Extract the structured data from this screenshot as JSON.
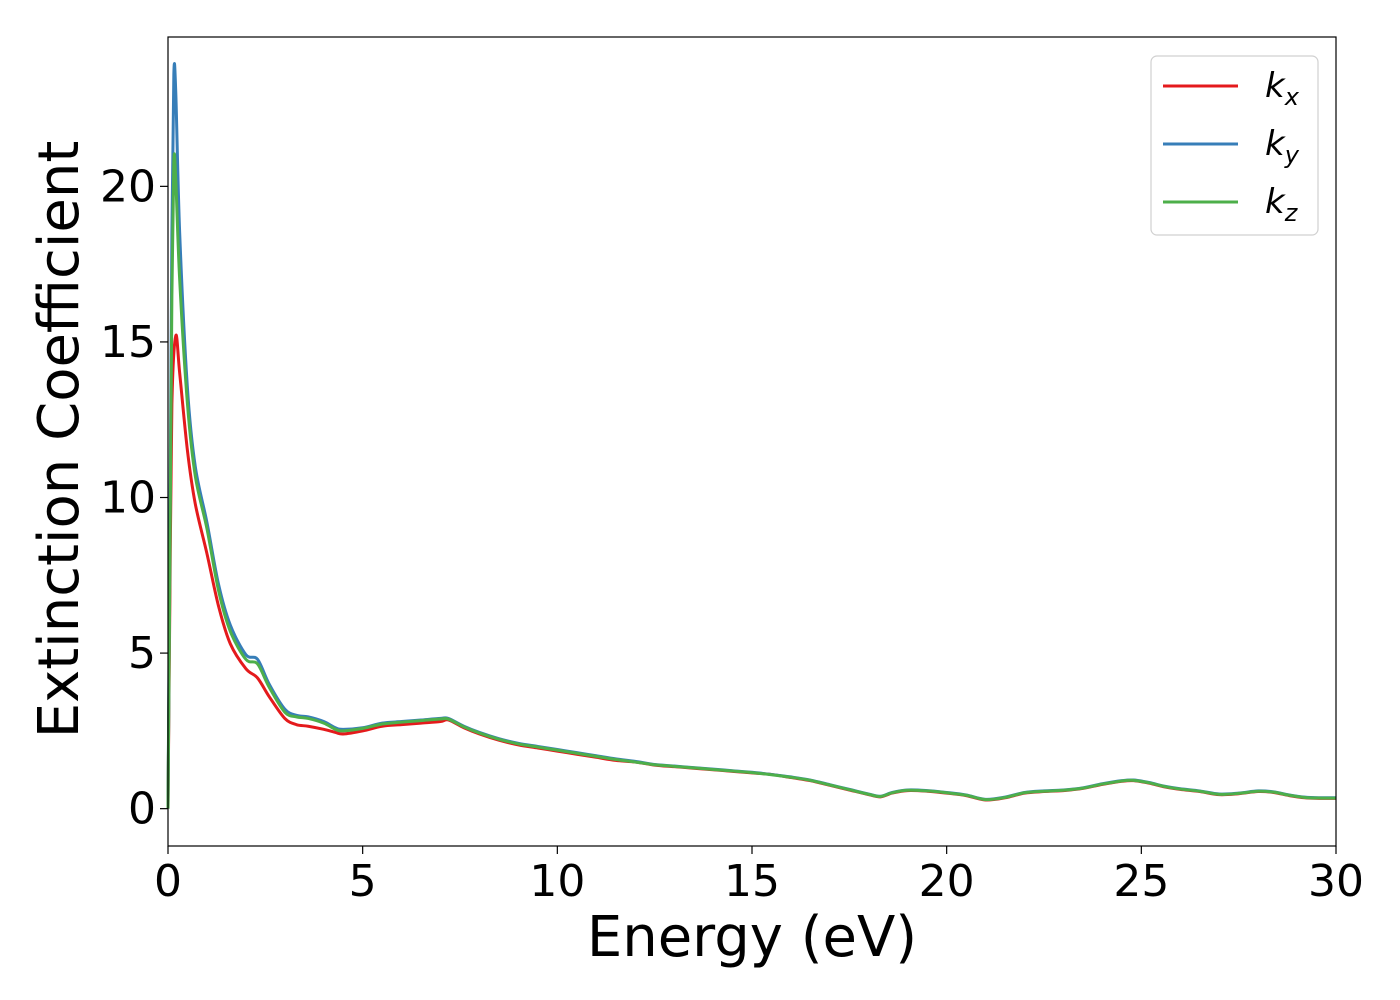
{
  "chart_data": {
    "type": "line",
    "xlabel": "Energy (eV)",
    "ylabel": "Extinction Coefficient",
    "xlim": [
      0,
      30
    ],
    "ylim": [
      -1.2,
      24.8
    ],
    "xticks": [
      0,
      5,
      10,
      15,
      20,
      25,
      30
    ],
    "yticks": [
      0,
      5,
      10,
      15,
      20
    ],
    "grid": false,
    "legend_position": "top-right",
    "series": [
      {
        "name": "kx",
        "label_base": "k",
        "label_sub": "x",
        "color": "#e41a1c",
        "x": [
          0,
          0.05,
          0.1,
          0.2,
          0.3,
          0.5,
          0.7,
          1.0,
          1.3,
          1.6,
          2.0,
          2.3,
          2.6,
          3.0,
          3.3,
          3.6,
          4.0,
          4.3,
          4.5,
          5.0,
          5.5,
          6.0,
          6.5,
          7.0,
          7.2,
          7.6,
          8.0,
          8.5,
          9.0,
          9.5,
          10.0,
          10.5,
          11.0,
          11.5,
          12.0,
          12.5,
          13.0,
          13.5,
          14.0,
          14.5,
          15.0,
          15.5,
          16.0,
          16.5,
          17.0,
          17.5,
          18.0,
          18.3,
          18.6,
          19.0,
          19.5,
          20.0,
          20.5,
          21.0,
          21.5,
          22.0,
          22.5,
          23.0,
          23.5,
          24.0,
          24.5,
          24.8,
          25.2,
          25.6,
          26.0,
          26.5,
          27.0,
          27.5,
          28.0,
          28.4,
          28.8,
          29.2,
          29.6,
          30.0
        ],
        "y": [
          0,
          7.0,
          13.0,
          15.2,
          14.0,
          11.5,
          9.8,
          8.2,
          6.5,
          5.3,
          4.5,
          4.2,
          3.6,
          2.9,
          2.7,
          2.65,
          2.55,
          2.45,
          2.4,
          2.5,
          2.65,
          2.7,
          2.75,
          2.8,
          2.85,
          2.6,
          2.4,
          2.2,
          2.05,
          1.95,
          1.85,
          1.75,
          1.65,
          1.55,
          1.5,
          1.4,
          1.35,
          1.3,
          1.25,
          1.2,
          1.15,
          1.1,
          1.0,
          0.9,
          0.75,
          0.6,
          0.45,
          0.38,
          0.5,
          0.58,
          0.56,
          0.5,
          0.42,
          0.28,
          0.35,
          0.5,
          0.55,
          0.58,
          0.65,
          0.78,
          0.88,
          0.9,
          0.82,
          0.7,
          0.62,
          0.55,
          0.45,
          0.48,
          0.55,
          0.52,
          0.42,
          0.35,
          0.33,
          0.33
        ]
      },
      {
        "name": "ky",
        "label_base": "k",
        "label_sub": "y",
        "color": "#377eb8",
        "x": [
          0,
          0.05,
          0.1,
          0.15,
          0.2,
          0.3,
          0.5,
          0.7,
          1.0,
          1.3,
          1.6,
          2.0,
          2.3,
          2.6,
          3.0,
          3.3,
          3.6,
          4.0,
          4.3,
          4.5,
          5.0,
          5.5,
          6.0,
          6.5,
          7.0,
          7.2,
          7.6,
          8.0,
          8.5,
          9.0,
          9.5,
          10.0,
          10.5,
          11.0,
          11.5,
          12.0,
          12.5,
          13.0,
          13.5,
          14.0,
          14.5,
          15.0,
          15.5,
          16.0,
          16.5,
          17.0,
          17.5,
          18.0,
          18.3,
          18.6,
          19.0,
          19.5,
          20.0,
          20.5,
          21.0,
          21.5,
          22.0,
          22.5,
          23.0,
          23.5,
          24.0,
          24.5,
          24.8,
          25.2,
          25.6,
          26.0,
          26.5,
          27.0,
          27.5,
          28.0,
          28.4,
          28.8,
          29.2,
          29.6,
          30.0
        ],
        "y": [
          0,
          9.0,
          18.5,
          23.6,
          23.0,
          18.5,
          13.5,
          11.0,
          9.2,
          7.2,
          5.9,
          4.95,
          4.8,
          4.0,
          3.2,
          3.0,
          2.95,
          2.8,
          2.6,
          2.55,
          2.6,
          2.75,
          2.8,
          2.85,
          2.9,
          2.9,
          2.65,
          2.45,
          2.25,
          2.1,
          2.0,
          1.9,
          1.8,
          1.7,
          1.6,
          1.52,
          1.42,
          1.37,
          1.32,
          1.27,
          1.22,
          1.17,
          1.1,
          1.02,
          0.92,
          0.77,
          0.62,
          0.47,
          0.4,
          0.52,
          0.6,
          0.58,
          0.52,
          0.44,
          0.3,
          0.37,
          0.52,
          0.57,
          0.6,
          0.67,
          0.8,
          0.9,
          0.92,
          0.84,
          0.72,
          0.64,
          0.57,
          0.47,
          0.5,
          0.57,
          0.54,
          0.44,
          0.37,
          0.35,
          0.35
        ]
      },
      {
        "name": "kz",
        "label_base": "k",
        "label_sub": "z",
        "color": "#4daf4a",
        "x": [
          0,
          0.05,
          0.1,
          0.15,
          0.2,
          0.3,
          0.5,
          0.7,
          1.0,
          1.3,
          1.6,
          2.0,
          2.3,
          2.6,
          3.0,
          3.3,
          3.6,
          4.0,
          4.3,
          4.5,
          5.0,
          5.5,
          6.0,
          6.5,
          7.0,
          7.2,
          7.6,
          8.0,
          8.5,
          9.0,
          9.5,
          10.0,
          10.5,
          11.0,
          11.5,
          12.0,
          12.5,
          13.0,
          13.5,
          14.0,
          14.5,
          15.0,
          15.5,
          16.0,
          16.5,
          17.0,
          17.5,
          18.0,
          18.3,
          18.6,
          19.0,
          19.5,
          20.0,
          20.5,
          21.0,
          21.5,
          22.0,
          22.5,
          23.0,
          23.5,
          24.0,
          24.5,
          24.8,
          25.2,
          25.6,
          26.0,
          26.5,
          27.0,
          27.5,
          28.0,
          28.4,
          28.8,
          29.2,
          29.6,
          30.0
        ],
        "y": [
          0,
          8.0,
          16.5,
          20.8,
          20.2,
          17.0,
          13.0,
          10.7,
          9.0,
          7.0,
          5.7,
          4.8,
          4.65,
          3.9,
          3.1,
          2.95,
          2.9,
          2.75,
          2.55,
          2.5,
          2.58,
          2.72,
          2.78,
          2.83,
          2.88,
          2.88,
          2.63,
          2.43,
          2.23,
          2.08,
          1.98,
          1.88,
          1.78,
          1.68,
          1.58,
          1.5,
          1.41,
          1.36,
          1.31,
          1.26,
          1.21,
          1.16,
          1.09,
          1.01,
          0.91,
          0.76,
          0.61,
          0.46,
          0.39,
          0.51,
          0.59,
          0.57,
          0.51,
          0.43,
          0.29,
          0.36,
          0.51,
          0.56,
          0.59,
          0.66,
          0.79,
          0.89,
          0.91,
          0.83,
          0.71,
          0.63,
          0.56,
          0.46,
          0.49,
          0.56,
          0.53,
          0.43,
          0.36,
          0.34,
          0.34
        ]
      }
    ]
  }
}
